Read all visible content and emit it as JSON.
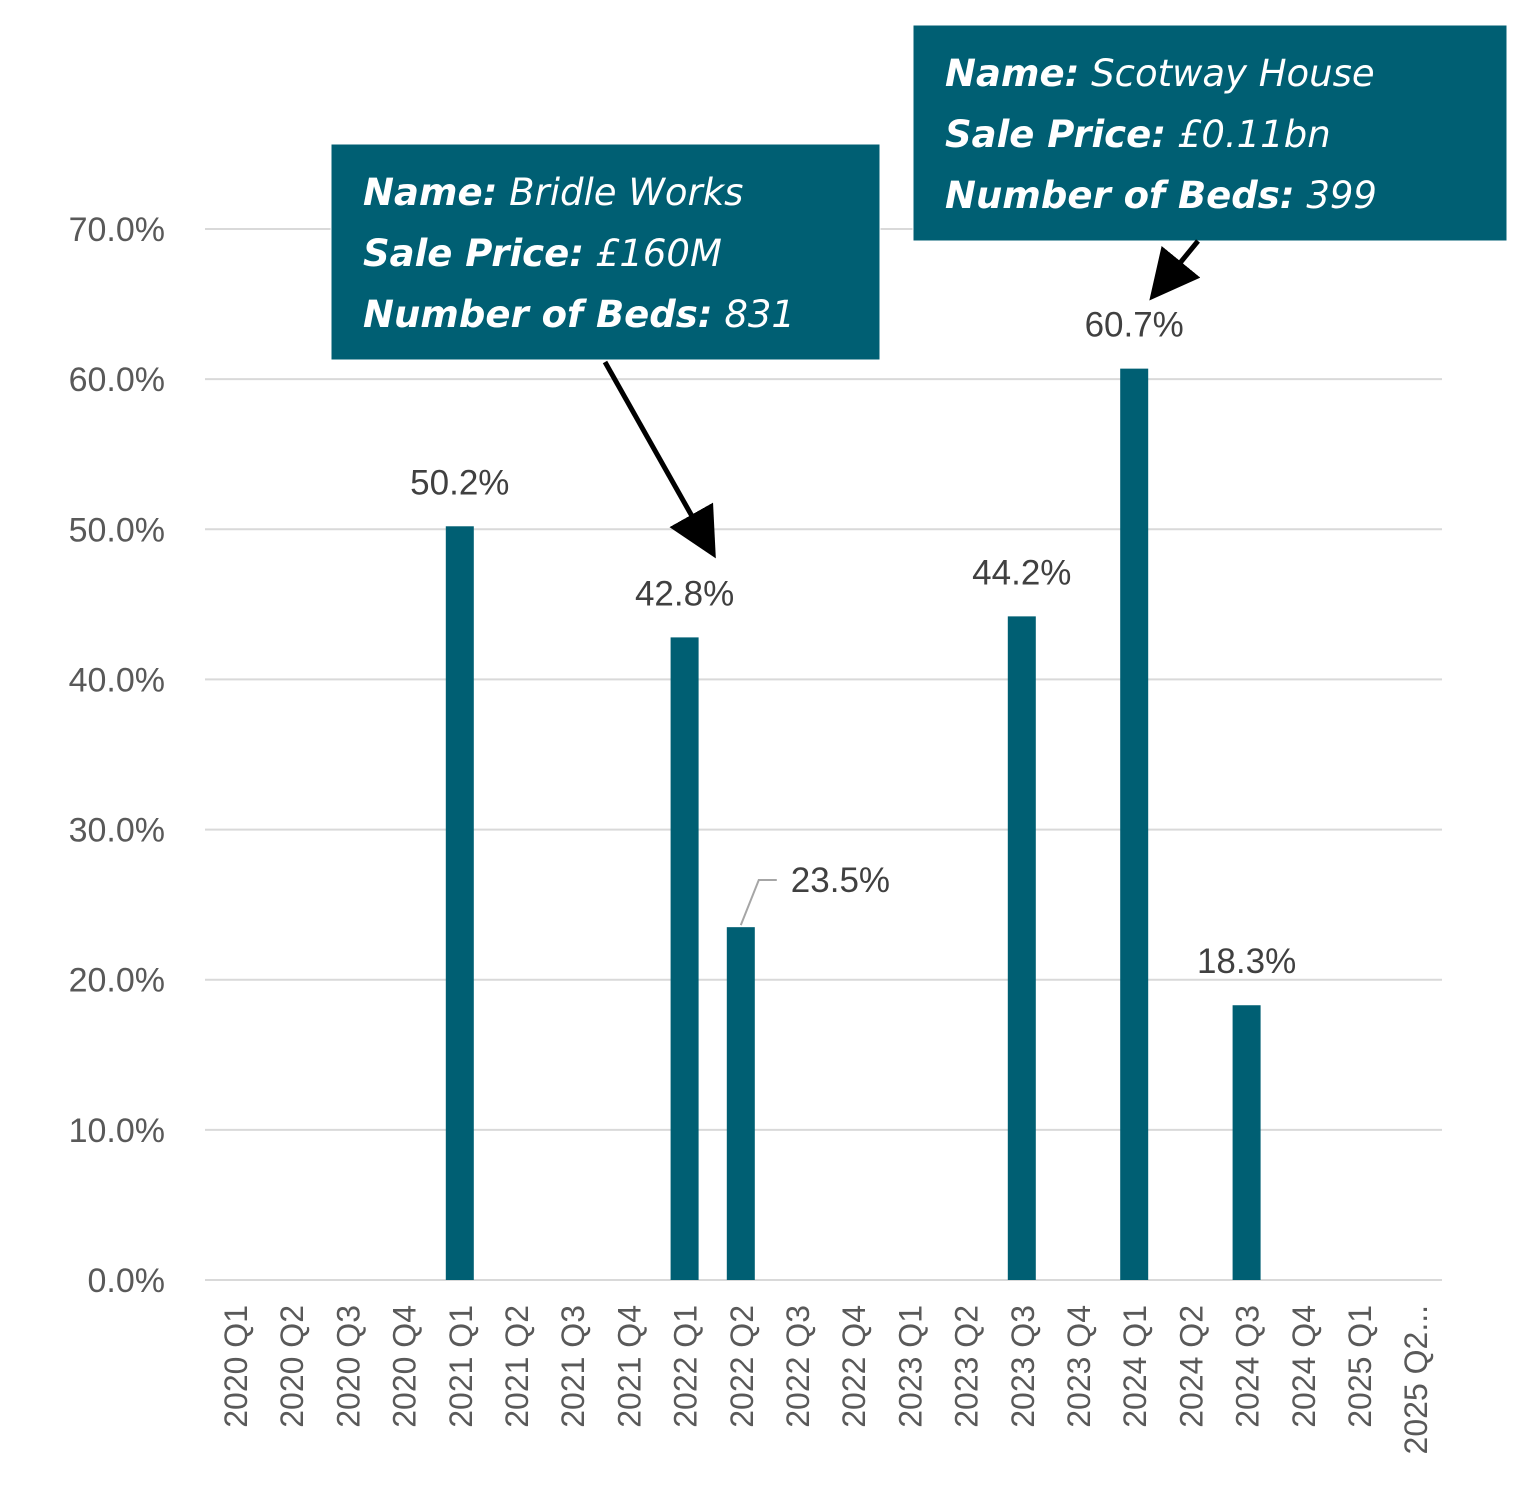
{
  "chart_data": {
    "type": "bar",
    "categories": [
      "2020 Q1",
      "2020 Q2",
      "2020 Q3",
      "2020 Q4",
      "2021 Q1",
      "2021 Q2",
      "2021 Q3",
      "2021 Q4",
      "2022 Q1",
      "2022 Q2",
      "2022 Q3",
      "2022 Q4",
      "2023 Q1",
      "2023 Q2",
      "2023 Q3",
      "2023 Q4",
      "2024 Q1",
      "2024 Q2",
      "2024 Q3",
      "2024 Q4",
      "2025 Q1",
      "2025 Q2..."
    ],
    "values": [
      0,
      0,
      0,
      0,
      50.2,
      0,
      0,
      0,
      42.8,
      23.5,
      0,
      0,
      0,
      0,
      44.2,
      0,
      60.7,
      0,
      18.3,
      0,
      0,
      0
    ],
    "data_labels": [
      {
        "category": "2021 Q1",
        "text": "50.2%"
      },
      {
        "category": "2022 Q1",
        "text": "42.8%"
      },
      {
        "category": "2022 Q2",
        "text": "23.5%"
      },
      {
        "category": "2023 Q3",
        "text": "44.2%"
      },
      {
        "category": "2024 Q1",
        "text": "60.7%"
      },
      {
        "category": "2024 Q3",
        "text": "18.3%"
      }
    ],
    "yticks": [
      "0.0%",
      "10.0%",
      "20.0%",
      "30.0%",
      "40.0%",
      "50.0%",
      "60.0%",
      "70.0%"
    ],
    "ylim": [
      0,
      70
    ],
    "grid": true,
    "title": "",
    "xlabel": "",
    "ylabel": "",
    "colors": {
      "bar": "#005F73",
      "callout": "#005F73",
      "grid": "#D9D9D9"
    },
    "annotations": [
      {
        "target": "2022 Q1",
        "lines": [
          {
            "key": "Name:",
            "value": "Bridle Works"
          },
          {
            "key": "Sale Price:",
            "value": "£160M"
          },
          {
            "key": "Number of Beds:",
            "value": "831"
          }
        ]
      },
      {
        "target": "2024 Q1",
        "lines": [
          {
            "key": "Name:",
            "value": "Scotway House"
          },
          {
            "key": "Sale Price:",
            "value": "£0.11bn"
          },
          {
            "key": "Number of Beds:",
            "value": "399"
          }
        ]
      }
    ]
  }
}
